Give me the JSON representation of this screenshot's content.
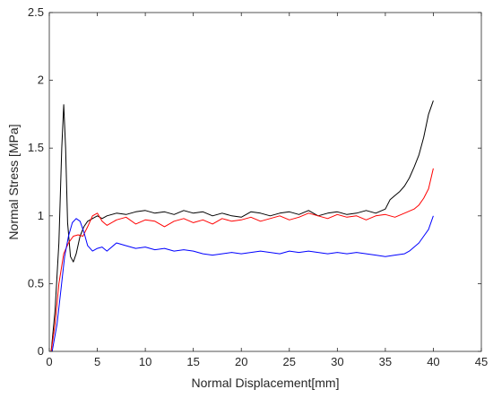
{
  "chart_data": {
    "type": "line",
    "title": "",
    "xlabel": "Normal Displacement[mm]",
    "ylabel": "Normal Stress [MPa]",
    "xlim": [
      0,
      45
    ],
    "ylim": [
      0,
      2.5
    ],
    "xticks": [
      "0",
      "5",
      "10",
      "15",
      "20",
      "25",
      "30",
      "35",
      "40",
      "45"
    ],
    "yticks": [
      "0",
      "0.5",
      "1",
      "1.5",
      "2",
      "2.5"
    ],
    "grid": false,
    "legend": "none",
    "series": [
      {
        "color": "#000000",
        "x": [
          0.2,
          0.6,
          1.0,
          1.3,
          1.5,
          1.7,
          1.9,
          2.2,
          2.5,
          2.8,
          3.2,
          3.6,
          4.0,
          4.5,
          5.0,
          5.5,
          6,
          7,
          8,
          9,
          10,
          11,
          12,
          13,
          14,
          15,
          16,
          17,
          18,
          19,
          20,
          21,
          22,
          23,
          24,
          25,
          26,
          27,
          28,
          29,
          30,
          31,
          32,
          33,
          34,
          35,
          35.5,
          36,
          36.5,
          37,
          37.5,
          38,
          38.5,
          39,
          39.5,
          40
        ],
        "y": [
          0.0,
          0.3,
          0.8,
          1.5,
          1.82,
          1.5,
          0.95,
          0.7,
          0.66,
          0.72,
          0.85,
          0.92,
          0.96,
          0.98,
          1.0,
          0.98,
          1.0,
          1.02,
          1.01,
          1.03,
          1.04,
          1.02,
          1.03,
          1.01,
          1.04,
          1.02,
          1.03,
          1.0,
          1.02,
          1.0,
          0.99,
          1.03,
          1.02,
          1.0,
          1.02,
          1.03,
          1.01,
          1.04,
          1.0,
          1.02,
          1.03,
          1.01,
          1.02,
          1.04,
          1.02,
          1.05,
          1.12,
          1.15,
          1.18,
          1.22,
          1.28,
          1.36,
          1.45,
          1.58,
          1.75,
          1.85
        ]
      },
      {
        "color": "#ff0000",
        "x": [
          0.2,
          0.6,
          1.0,
          1.5,
          2.0,
          2.5,
          3.0,
          3.5,
          4.0,
          4.5,
          5.0,
          5.5,
          6,
          7,
          8,
          9,
          10,
          11,
          12,
          13,
          14,
          15,
          16,
          17,
          18,
          19,
          20,
          21,
          22,
          23,
          24,
          25,
          26,
          27,
          28,
          29,
          30,
          31,
          32,
          33,
          34,
          35,
          36,
          37,
          38,
          38.5,
          39,
          39.5,
          40
        ],
        "y": [
          0.0,
          0.2,
          0.5,
          0.72,
          0.8,
          0.85,
          0.86,
          0.85,
          0.92,
          1.0,
          1.02,
          0.96,
          0.93,
          0.97,
          0.99,
          0.94,
          0.97,
          0.96,
          0.92,
          0.96,
          0.98,
          0.95,
          0.97,
          0.94,
          0.98,
          0.96,
          0.97,
          0.99,
          0.96,
          0.98,
          1.0,
          0.97,
          0.99,
          1.02,
          1.0,
          0.98,
          1.01,
          0.99,
          1.0,
          0.97,
          1.0,
          1.01,
          0.99,
          1.02,
          1.05,
          1.08,
          1.13,
          1.2,
          1.35
        ]
      },
      {
        "color": "#0000ff",
        "x": [
          0.3,
          0.8,
          1.2,
          1.6,
          2.0,
          2.4,
          2.8,
          3.2,
          3.6,
          4.0,
          4.5,
          5.0,
          5.5,
          6,
          7,
          8,
          9,
          10,
          11,
          12,
          13,
          14,
          15,
          16,
          17,
          18,
          19,
          20,
          21,
          22,
          23,
          24,
          25,
          26,
          27,
          28,
          29,
          30,
          31,
          32,
          33,
          34,
          35,
          36,
          37,
          37.5,
          38,
          38.5,
          39,
          39.5,
          40
        ],
        "y": [
          0.0,
          0.2,
          0.45,
          0.7,
          0.85,
          0.95,
          0.98,
          0.96,
          0.88,
          0.78,
          0.74,
          0.76,
          0.77,
          0.74,
          0.8,
          0.78,
          0.76,
          0.77,
          0.75,
          0.76,
          0.74,
          0.75,
          0.74,
          0.72,
          0.71,
          0.72,
          0.73,
          0.72,
          0.73,
          0.74,
          0.73,
          0.72,
          0.74,
          0.73,
          0.74,
          0.73,
          0.72,
          0.73,
          0.72,
          0.73,
          0.72,
          0.71,
          0.7,
          0.71,
          0.72,
          0.74,
          0.77,
          0.8,
          0.85,
          0.9,
          1.0
        ]
      }
    ]
  }
}
